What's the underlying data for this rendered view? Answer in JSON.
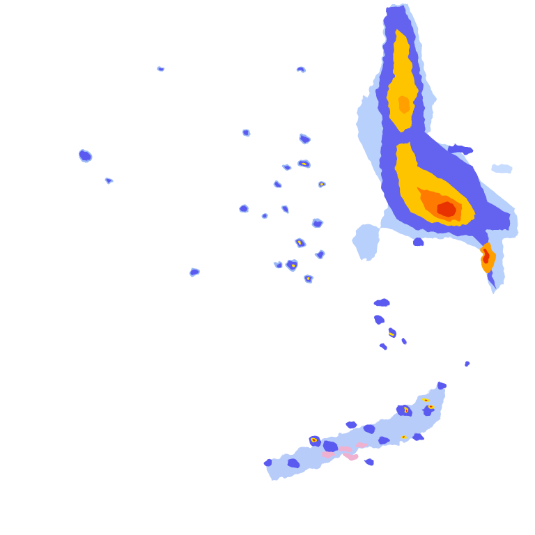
{
  "map": {
    "type": "weather-radar-reflectivity",
    "background": "#ffffff",
    "palette": {
      "very_light": "#c8dcff",
      "light": "#9ab8f5",
      "moderate": "#5a5af0",
      "dark_blue": "#2020a0",
      "yellow": "#ffe000",
      "orange": "#ffa000",
      "red": "#e83000",
      "dark_red": "#a00000",
      "pink": "#f0b0d0"
    }
  }
}
